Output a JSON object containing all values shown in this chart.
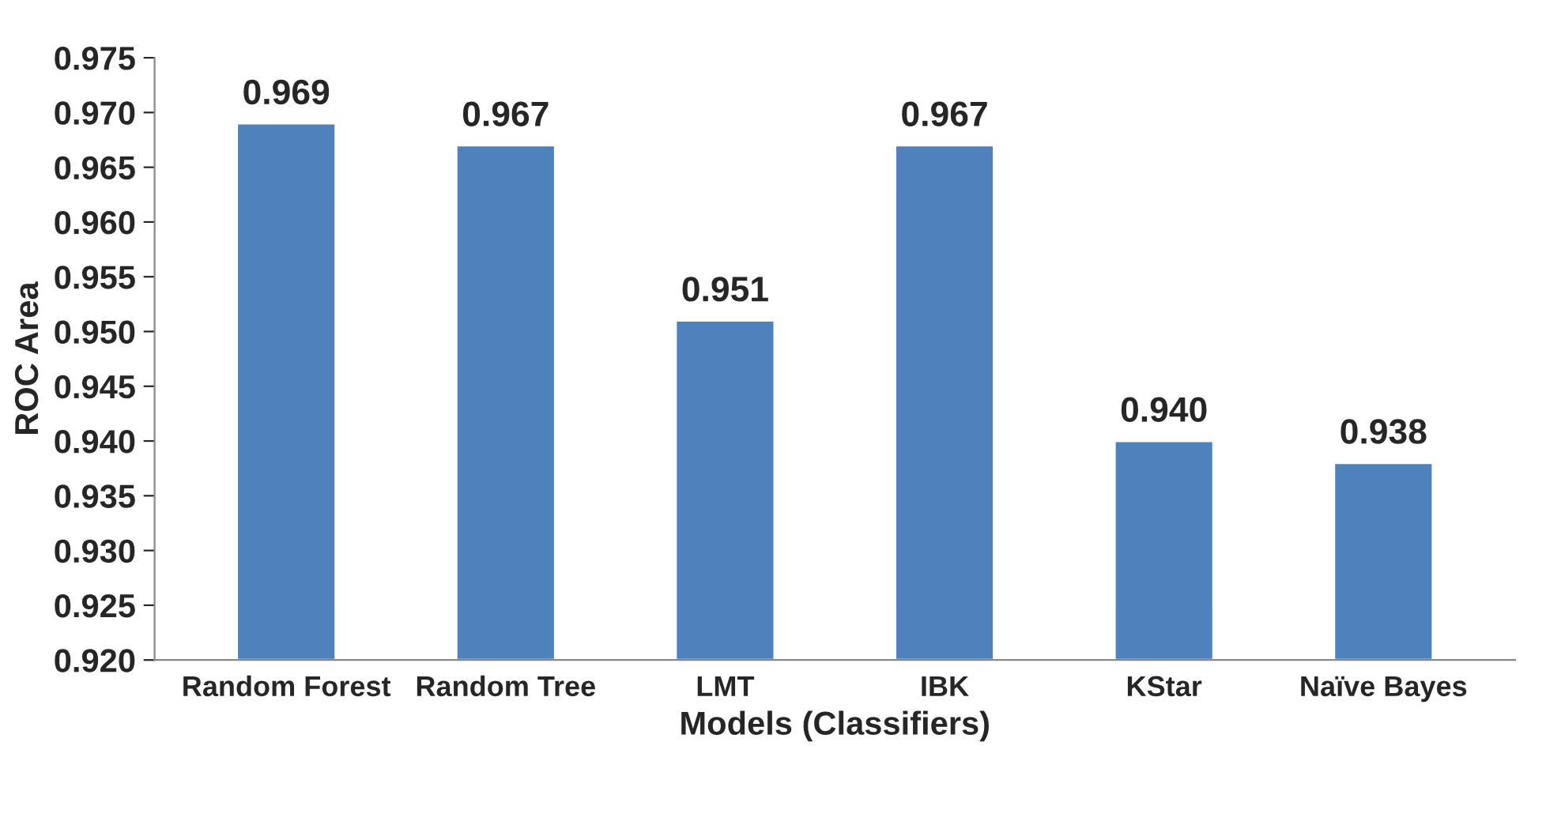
{
  "chart_data": {
    "type": "bar",
    "xlabel": "Models (Classifiers)",
    "ylabel": "ROC Area",
    "categories": [
      "Random Forest",
      "Random Tree",
      "LMT",
      "IBK",
      "KStar",
      "Naïve Bayes"
    ],
    "values": [
      0.969,
      0.967,
      0.951,
      0.967,
      0.94,
      0.938
    ],
    "value_labels": [
      "0.969",
      "0.967",
      "0.951",
      "0.967",
      "0.940",
      "0.938"
    ],
    "color": "#4f81bd",
    "ylim": [
      0.92,
      0.975
    ],
    "yticks": [
      {
        "value": 0.92,
        "label": "0.920"
      },
      {
        "value": 0.925,
        "label": "0.925"
      },
      {
        "value": 0.93,
        "label": "0.930"
      },
      {
        "value": 0.935,
        "label": "0.935"
      },
      {
        "value": 0.94,
        "label": "0.940"
      },
      {
        "value": 0.945,
        "label": "0.945"
      },
      {
        "value": 0.95,
        "label": "0.950"
      },
      {
        "value": 0.955,
        "label": "0.955"
      },
      {
        "value": 0.96,
        "label": "0.960"
      },
      {
        "value": 0.965,
        "label": "0.965"
      },
      {
        "value": 0.97,
        "label": "0.970"
      },
      {
        "value": 0.975,
        "label": "0.975"
      }
    ],
    "grid": false
  }
}
